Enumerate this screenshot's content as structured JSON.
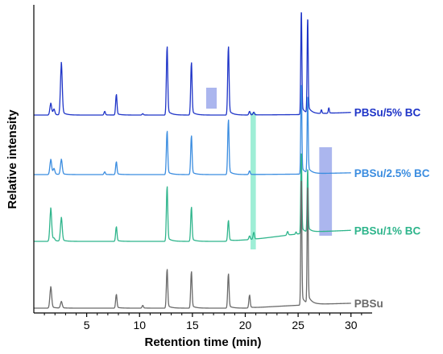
{
  "chart_data": {
    "type": "line",
    "title": "",
    "xlabel": "Retention time (min)",
    "ylabel": "Relative intensity",
    "xlim": [
      0,
      32
    ],
    "xticks": [
      5,
      10,
      15,
      20,
      25,
      30
    ],
    "y_ticks_shown": false,
    "grid": false,
    "legend": "inline labels at the right end of each trace",
    "highlights": [
      {
        "x_range": [
          16.3,
          17.3
        ],
        "trace": "PBSu/5% BC",
        "color": "#8f9ee8"
      },
      {
        "x_range": [
          20.5,
          21.0
        ],
        "trace": "PBSu/1% BC",
        "color": "#7ee8c8"
      },
      {
        "x_range": [
          27.0,
          28.2
        ],
        "trace": "PBSu/2.5% BC",
        "color": "#8f9ee8"
      }
    ],
    "series": [
      {
        "name": "PBSu/5% BC",
        "color": "#1f35c8",
        "baseline": 100,
        "drift": [
          [
            0,
            0
          ],
          [
            20,
            0
          ],
          [
            25,
            1
          ],
          [
            28,
            4
          ],
          [
            30,
            6
          ],
          [
            32,
            7
          ]
        ],
        "peaks": [
          [
            1.6,
            25
          ],
          [
            1.9,
            12
          ],
          [
            2.6,
            110
          ],
          [
            6.7,
            8
          ],
          [
            7.8,
            45
          ],
          [
            10.3,
            3
          ],
          [
            12.6,
            150
          ],
          [
            14.9,
            115
          ],
          [
            18.4,
            150
          ],
          [
            20.4,
            8
          ],
          [
            20.8,
            6
          ],
          [
            25.3,
            230
          ],
          [
            25.9,
            210
          ],
          [
            27.2,
            8
          ],
          [
            27.9,
            12
          ]
        ]
      },
      {
        "name": "PBSu/2.5% BC",
        "color": "#3b8de0",
        "baseline": 38,
        "drift": [
          [
            0,
            0
          ],
          [
            20,
            0
          ],
          [
            25,
            1
          ],
          [
            28,
            3
          ],
          [
            30,
            4
          ],
          [
            32,
            5
          ]
        ],
        "peaks": [
          [
            1.6,
            32
          ],
          [
            1.9,
            12
          ],
          [
            2.6,
            32
          ],
          [
            6.7,
            6
          ],
          [
            7.8,
            28
          ],
          [
            12.6,
            95
          ],
          [
            14.9,
            85
          ],
          [
            18.4,
            120
          ],
          [
            20.4,
            8
          ],
          [
            25.3,
            200
          ],
          [
            25.9,
            170
          ]
        ]
      },
      {
        "name": "PBSu/1% BC",
        "color": "#2fb58c",
        "baseline": -25,
        "drift": [
          [
            0,
            0
          ],
          [
            18,
            0
          ],
          [
            21,
            5
          ],
          [
            24,
            14
          ],
          [
            27,
            22
          ],
          [
            30,
            25
          ],
          [
            32,
            26
          ]
        ],
        "peaks": [
          [
            1.6,
            70
          ],
          [
            1.9,
            5
          ],
          [
            2.6,
            50
          ],
          [
            7.8,
            32
          ],
          [
            12.6,
            120
          ],
          [
            14.9,
            75
          ],
          [
            18.4,
            45
          ],
          [
            20.4,
            8
          ],
          [
            20.8,
            15
          ],
          [
            24.0,
            8
          ],
          [
            24.8,
            5
          ],
          [
            25.3,
            180
          ],
          [
            25.9,
            140
          ]
        ]
      },
      {
        "name": "PBSu",
        "color": "#6a6a6a",
        "baseline": -100,
        "drift": [
          [
            0,
            0
          ],
          [
            20,
            0
          ],
          [
            23,
            4
          ],
          [
            27,
            9
          ],
          [
            30,
            11
          ],
          [
            32,
            12
          ]
        ],
        "peaks": [
          [
            1.6,
            45
          ],
          [
            2.6,
            14
          ],
          [
            7.8,
            30
          ],
          [
            10.3,
            6
          ],
          [
            12.6,
            85
          ],
          [
            14.9,
            80
          ],
          [
            18.4,
            75
          ],
          [
            20.4,
            28
          ],
          [
            25.3,
            280
          ],
          [
            25.9,
            260
          ]
        ]
      }
    ]
  }
}
